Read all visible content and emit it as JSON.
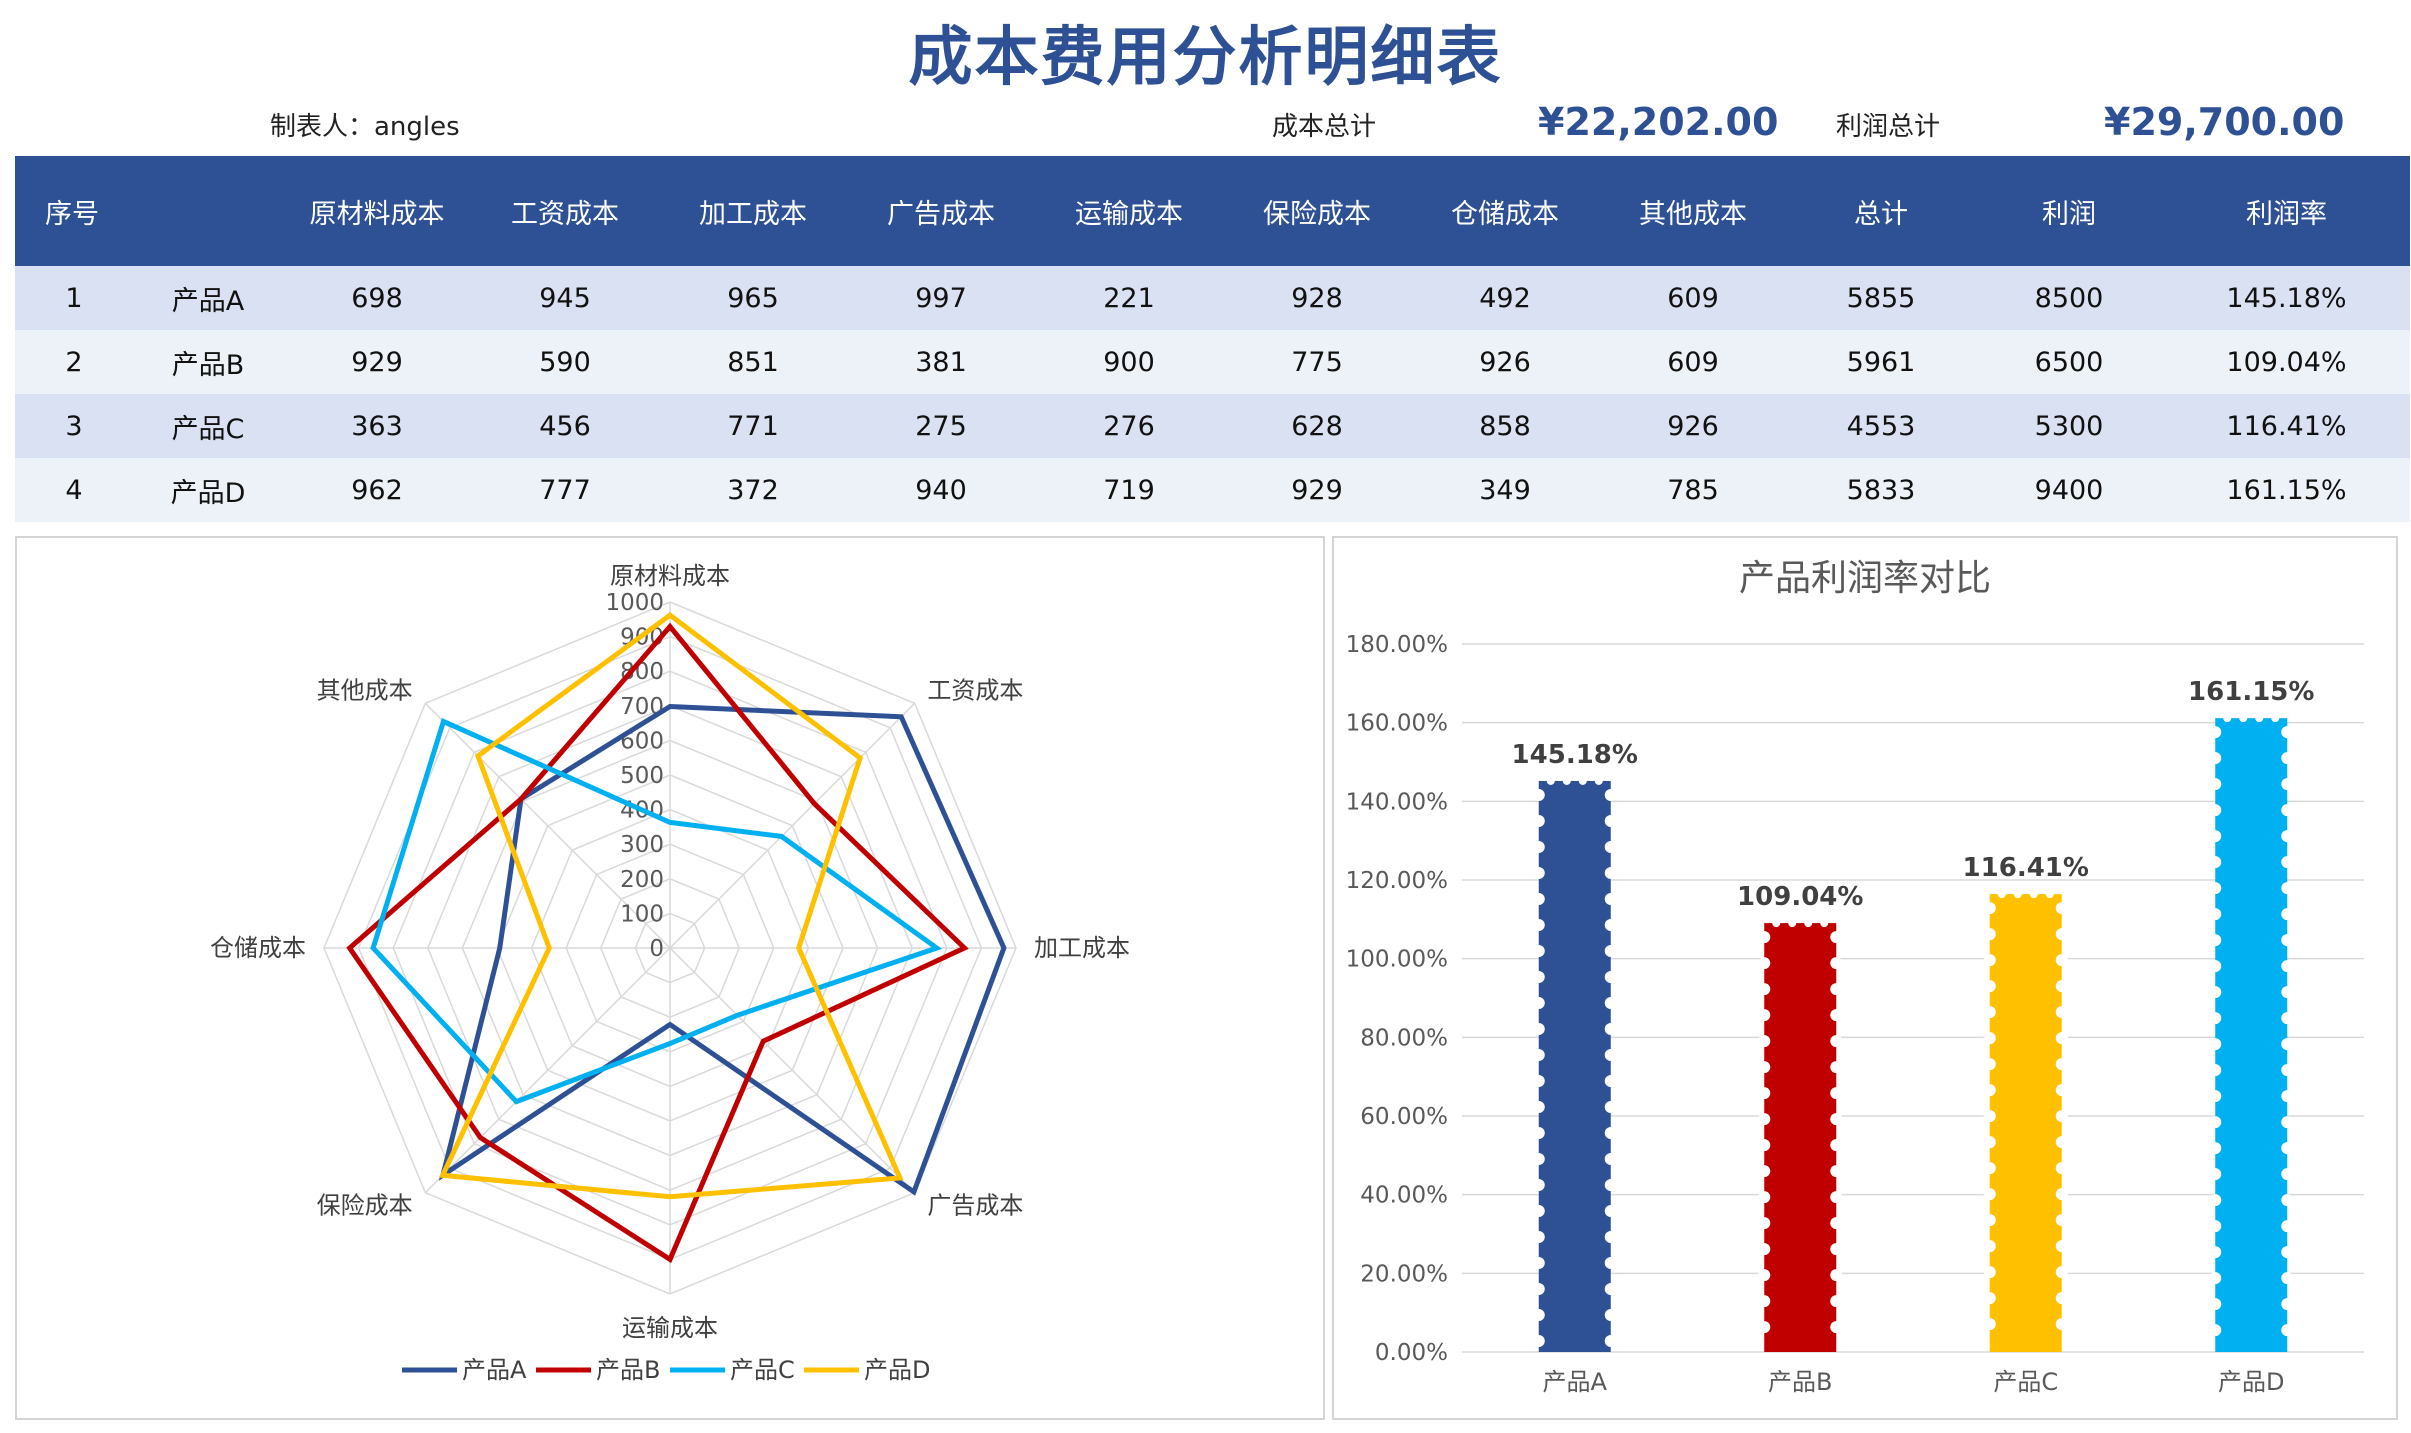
{
  "header": {
    "title": "成本费用分析明细表",
    "maker_label": "制表人：angles",
    "cost_total_label": "成本总计",
    "cost_total_value": "¥22,202.00",
    "profit_total_label": "利润总计",
    "profit_total_value": "¥29,700.00"
  },
  "table": {
    "columns": [
      "序号",
      "",
      "原材料成本",
      "工资成本",
      "加工成本",
      "广告成本",
      "运输成本",
      "保险成本",
      "仓储成本",
      "其他成本",
      "总计",
      "利润",
      "利润率"
    ],
    "rows": [
      [
        "1",
        "产品A",
        "698",
        "945",
        "965",
        "997",
        "221",
        "928",
        "492",
        "609",
        "5855",
        "8500",
        "145.18%"
      ],
      [
        "2",
        "产品B",
        "929",
        "590",
        "851",
        "381",
        "900",
        "775",
        "926",
        "609",
        "5961",
        "6500",
        "109.04%"
      ],
      [
        "3",
        "产品C",
        "363",
        "456",
        "771",
        "275",
        "276",
        "628",
        "858",
        "926",
        "4553",
        "5300",
        "116.41%"
      ],
      [
        "4",
        "产品D",
        "962",
        "777",
        "372",
        "940",
        "719",
        "929",
        "349",
        "785",
        "5833",
        "9400",
        "161.15%"
      ]
    ]
  },
  "colors": {
    "header_blue": "#2e5195",
    "productA": "#2e5195",
    "productB": "#c00000",
    "productC": "#00b0f0",
    "productD": "#ffc000"
  },
  "chart_data": [
    {
      "type": "radar",
      "title": "",
      "axes": [
        "原材料成本",
        "工资成本",
        "加工成本",
        "广告成本",
        "运输成本",
        "保险成本",
        "仓储成本",
        "其他成本"
      ],
      "rlim": [
        0,
        1000
      ],
      "ticks": [
        "0",
        "100",
        "200",
        "300",
        "400",
        "500",
        "600",
        "700",
        "800",
        "900",
        "1000"
      ],
      "series": [
        {
          "name": "产品A",
          "color": "#2e5195",
          "values": [
            698,
            945,
            965,
            997,
            221,
            928,
            492,
            609
          ]
        },
        {
          "name": "产品B",
          "color": "#c00000",
          "values": [
            929,
            590,
            851,
            381,
            900,
            775,
            926,
            609
          ]
        },
        {
          "name": "产品C",
          "color": "#00b0f0",
          "values": [
            363,
            456,
            771,
            275,
            276,
            628,
            858,
            926
          ]
        },
        {
          "name": "产品D",
          "color": "#ffc000",
          "values": [
            962,
            777,
            372,
            940,
            719,
            929,
            349,
            785
          ]
        }
      ],
      "legend": "bottom"
    },
    {
      "type": "bar",
      "title": "产品利润率对比",
      "categories": [
        "产品A",
        "产品B",
        "产品C",
        "产品D"
      ],
      "values": [
        145.18,
        109.04,
        116.41,
        161.15
      ],
      "data_labels": [
        "145.18%",
        "109.04%",
        "116.41%",
        "161.15%"
      ],
      "colors": [
        "#2e5195",
        "#c00000",
        "#ffc000",
        "#00b0f0"
      ],
      "yticks": [
        "0.00%",
        "20.00%",
        "40.00%",
        "60.00%",
        "80.00%",
        "100.00%",
        "120.00%",
        "140.00%",
        "160.00%",
        "180.00%"
      ],
      "ylim": [
        0,
        180
      ],
      "grid": true
    }
  ]
}
